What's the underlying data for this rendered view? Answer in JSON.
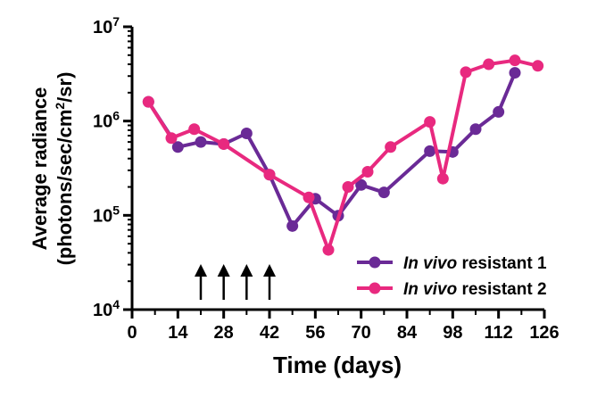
{
  "chart_data": {
    "type": "line",
    "xlabel": "Time (days)",
    "ylabel_line1": "Average radiance",
    "ylabel_line2_parts": [
      "(photons/sec/cm",
      "2",
      "/sr)"
    ],
    "x_ticks": [
      "0",
      "14",
      "28",
      "42",
      "56",
      "70",
      "84",
      "98",
      "112",
      "126"
    ],
    "xlim": [
      0,
      126
    ],
    "ylim": [
      10000,
      10000000
    ],
    "yscale": "log",
    "y_ticks": [
      {
        "base": "10",
        "exp": "4",
        "value": 10000
      },
      {
        "base": "10",
        "exp": "5",
        "value": 100000
      },
      {
        "base": "10",
        "exp": "6",
        "value": 1000000
      },
      {
        "base": "10",
        "exp": "7",
        "value": 10000000
      }
    ],
    "legend_position": "lower-right",
    "arrows_at_days": [
      21,
      28,
      35,
      42
    ],
    "series": [
      {
        "name_italic": "In vivo",
        "name_rest": " resistant 1",
        "color": "#6a2a96",
        "x": [
          5,
          14,
          21,
          28,
          35,
          42,
          49,
          56,
          63,
          70,
          77,
          91,
          98,
          105,
          112,
          117
        ],
        "y": [
          1600000,
          530000,
          600000,
          570000,
          740000,
          270000,
          77000,
          150000,
          99000,
          210000,
          175000,
          480000,
          470000,
          820000,
          1250000,
          3250000
        ]
      },
      {
        "name_italic": "In vivo",
        "name_rest": " resistant 2",
        "color": "#e8297f",
        "x": [
          5,
          12,
          19,
          28,
          42,
          54,
          60,
          66,
          72,
          79,
          91,
          95,
          102,
          109,
          117,
          124
        ],
        "y": [
          1600000,
          660000,
          820000,
          570000,
          270000,
          155000,
          43000,
          200000,
          290000,
          530000,
          980000,
          245000,
          3300000,
          4000000,
          4400000,
          3850000
        ]
      }
    ]
  }
}
